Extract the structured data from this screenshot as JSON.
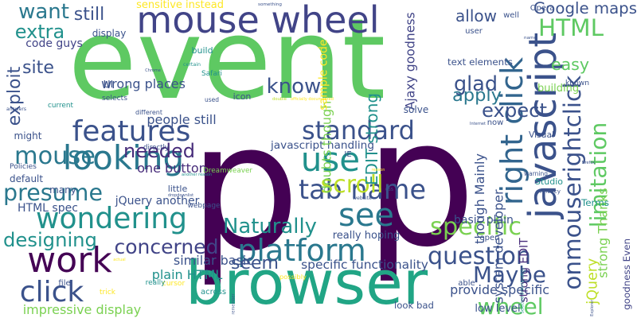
{
  "words": [
    {
      "text": "event",
      "color": "#5ec962",
      "vertical": false
    },
    {
      "text": "p",
      "color": "#440154",
      "vertical": false
    },
    {
      "text": "p",
      "color": "#440154",
      "vertical": false
    },
    {
      "text": "browser",
      "color": "#21a585",
      "vertical": false
    },
    {
      "text": "mouse wheel",
      "color": "#414487",
      "vertical": false
    },
    {
      "text": "javascript",
      "color": "#3b528b",
      "vertical": true
    },
    {
      "text": "right click",
      "color": "#32658e",
      "vertical": true
    },
    {
      "text": "onmouserightclick",
      "color": "#3b528b",
      "vertical": true
    },
    {
      "text": "limitation",
      "color": "#5ec962",
      "vertical": true
    },
    {
      "text": "platform",
      "color": "#2a788e",
      "vertical": false
    },
    {
      "text": "work",
      "color": "#440154",
      "vertical": false
    },
    {
      "text": "features",
      "color": "#3b528b",
      "vertical": false
    },
    {
      "text": "looking",
      "color": "#2a788e",
      "vertical": false
    },
    {
      "text": "wondering",
      "color": "#21918c",
      "vertical": false
    },
    {
      "text": "standard",
      "color": "#3b528b",
      "vertical": false
    },
    {
      "text": "use",
      "color": "#21918c",
      "vertical": false
    },
    {
      "text": "see",
      "color": "#2a788e",
      "vertical": false
    },
    {
      "text": "tab name",
      "color": "#3b528b",
      "vertical": false
    },
    {
      "text": "easy",
      "color": "#5ec962",
      "vertical": false
    },
    {
      "text": "HTML",
      "color": "#5ec962",
      "vertical": false
    },
    {
      "text": "mouse",
      "color": "#2a788e",
      "vertical": false
    },
    {
      "text": "click",
      "color": "#3b528b",
      "vertical": false
    },
    {
      "text": "question",
      "color": "#3b528b",
      "vertical": false
    },
    {
      "text": "Maybe",
      "color": "#3b528b",
      "vertical": false
    },
    {
      "text": "specific",
      "color": "#7ad151",
      "vertical": false
    },
    {
      "text": "wheel",
      "color": "#5ec962",
      "vertical": false
    },
    {
      "text": "want",
      "color": "#2a788e",
      "vertical": false
    },
    {
      "text": "exploit",
      "color": "#3b528b",
      "vertical": true
    },
    {
      "text": "presume",
      "color": "#2a788e",
      "vertical": false
    },
    {
      "text": "scroll",
      "color": "#bddf26",
      "vertical": false
    },
    {
      "text": "know",
      "color": "#3b528b",
      "vertical": false
    },
    {
      "text": "apply",
      "color": "#2a788e",
      "vertical": false
    },
    {
      "text": "glad",
      "color": "#3b528b",
      "vertical": false
    },
    {
      "text": "expect",
      "color": "#3b528b",
      "vertical": false
    },
    {
      "text": "designing",
      "color": "#21918c",
      "vertical": false
    },
    {
      "text": "concerned",
      "color": "#414487",
      "vertical": false
    },
    {
      "text": "Naturally",
      "color": "#21918c",
      "vertical": false
    },
    {
      "text": "seem",
      "color": "#3b528b",
      "vertical": false
    },
    {
      "text": "needed",
      "color": "#472c7a",
      "vertical": false
    },
    {
      "text": "site",
      "color": "#3b528b",
      "vertical": false
    },
    {
      "text": "extra",
      "color": "#21918c",
      "vertical": false
    },
    {
      "text": "still",
      "color": "#3b528b",
      "vertical": false
    },
    {
      "text": "allow",
      "color": "#3b528b",
      "vertical": false
    },
    {
      "text": "Google maps",
      "color": "#3b528b",
      "vertical": false
    },
    {
      "text": "jQuery",
      "color": "#bddf26",
      "vertical": true
    },
    {
      "text": "goodness Even",
      "color": "#414487",
      "vertical": true
    },
    {
      "text": "impressive display",
      "color": "#7ad151",
      "vertical": false
    },
    {
      "text": "specific functionality",
      "color": "#3b528b",
      "vertical": false
    },
    {
      "text": "provide specific",
      "color": "#3b528b",
      "vertical": false
    },
    {
      "text": "similar basic",
      "color": "#3b528b",
      "vertical": false
    },
    {
      "text": "plain HTML",
      "color": "#21918c",
      "vertical": false
    },
    {
      "text": "wrong places",
      "color": "#3b528b",
      "vertical": false
    },
    {
      "text": "javascript handling",
      "color": "#3b528b",
      "vertical": false
    },
    {
      "text": "people still",
      "color": "#3b528b",
      "vertical": false
    },
    {
      "text": "one button",
      "color": "#472c7a",
      "vertical": false
    },
    {
      "text": "code guys",
      "color": "#414487",
      "vertical": false
    },
    {
      "text": "sensitive instead",
      "color": "#fde725",
      "vertical": false
    },
    {
      "text": "Ajaxy goodness",
      "color": "#414487",
      "vertical": true
    },
    {
      "text": "EDIT strong",
      "color": "#21918c",
      "vertical": true
    },
    {
      "text": "doubts though",
      "color": "#7ad151",
      "vertical": true
    },
    {
      "text": "sample code",
      "color": "#fde725",
      "vertical": true
    },
    {
      "text": "though Mainly",
      "color": "#3b528b",
      "vertical": true
    },
    {
      "text": "strong Thanks",
      "color": "#7ad151",
      "vertical": true
    },
    {
      "text": "system developer",
      "color": "#3b528b",
      "vertical": true
    },
    {
      "text": "strong EDIT",
      "color": "#472c7a",
      "vertical": true
    },
    {
      "text": "another reason",
      "color": "#21918c",
      "vertical": false
    },
    {
      "text": "jQuery another",
      "color": "#3b528b",
      "vertical": false
    },
    {
      "text": "HTML spec",
      "color": "#3b528b",
      "vertical": false
    },
    {
      "text": "text elements",
      "color": "#3b528b",
      "vertical": false
    },
    {
      "text": "basic plain",
      "color": "#3b528b",
      "vertical": false
    },
    {
      "text": "low level",
      "color": "#3b528b",
      "vertical": false
    },
    {
      "text": "look bad",
      "color": "#3b528b",
      "vertical": false
    },
    {
      "text": "officially documented",
      "color": "#fde725",
      "vertical": false
    },
    {
      "text": "really hoping",
      "color": "#3b528b",
      "vertical": false
    },
    {
      "text": "building",
      "color": "#7ad151",
      "vertical": false
    },
    {
      "text": "solve",
      "color": "#3b528b",
      "vertical": false
    },
    {
      "text": "default",
      "color": "#3b528b",
      "vertical": false
    },
    {
      "text": "Policies",
      "color": "#3b528b",
      "vertical": false
    },
    {
      "text": "many",
      "color": "#3b528b",
      "vertical": false
    },
    {
      "text": "directly",
      "color": "#3b528b",
      "vertical": false
    },
    {
      "text": "might",
      "color": "#3b528b",
      "vertical": false
    },
    {
      "text": "current",
      "color": "#21918c",
      "vertical": false
    },
    {
      "text": "answers",
      "color": "#3b528b",
      "vertical": false
    },
    {
      "text": "display",
      "color": "#3b528b",
      "vertical": false
    },
    {
      "text": "UI",
      "color": "#3b528b",
      "vertical": false
    },
    {
      "text": "Chrome",
      "color": "#3b528b",
      "vertical": false
    },
    {
      "text": "Safari",
      "color": "#21918c",
      "vertical": false
    },
    {
      "text": "selects",
      "color": "#3b528b",
      "vertical": false
    },
    {
      "text": "build",
      "color": "#21918c",
      "vertical": false
    },
    {
      "text": "certain",
      "color": "#21918c",
      "vertical": false
    },
    {
      "text": "icon",
      "color": "#3b528b",
      "vertical": false
    },
    {
      "text": "used",
      "color": "#3b528b",
      "vertical": false
    },
    {
      "text": "double",
      "color": "#bddf26",
      "vertical": false
    },
    {
      "text": "different",
      "color": "#3b528b",
      "vertical": false
    },
    {
      "text": "something",
      "color": "#3b528b",
      "vertical": false
    },
    {
      "text": "user",
      "color": "#3b528b",
      "vertical": false
    },
    {
      "text": "Internet",
      "color": "#3b528b",
      "vertical": false
    },
    {
      "text": "Visual",
      "color": "#3b528b",
      "vertical": false
    },
    {
      "text": "warning",
      "color": "#3b528b",
      "vertical": false
    },
    {
      "text": "Studio",
      "color": "#21918c",
      "vertical": false
    },
    {
      "text": "Privacy",
      "color": "#3b528b",
      "vertical": false
    },
    {
      "text": "Terms",
      "color": "#21918c",
      "vertical": false
    },
    {
      "text": "CSS",
      "color": "#3b528b",
      "vertical": false
    },
    {
      "text": "website",
      "color": "#3b528b",
      "vertical": false
    },
    {
      "text": "little",
      "color": "#3b528b",
      "vertical": false
    },
    {
      "text": "dropdownlist",
      "color": "#3b528b",
      "vertical": false
    },
    {
      "text": "Dreamweaver",
      "color": "#7ad151",
      "vertical": false
    },
    {
      "text": "webpage",
      "color": "#3b528b",
      "vertical": false
    },
    {
      "text": "file",
      "color": "#3b528b",
      "vertical": false
    },
    {
      "text": "trick",
      "color": "#fde725",
      "vertical": false
    },
    {
      "text": "possibly",
      "color": "#fde725",
      "vertical": false
    },
    {
      "text": "across",
      "color": "#21918c",
      "vertical": false
    },
    {
      "text": "open",
      "color": "#3b528b",
      "vertical": false
    },
    {
      "text": "able",
      "color": "#3b528b",
      "vertical": false
    },
    {
      "text": "Explorer",
      "color": "#3b528b",
      "vertical": true
    },
    {
      "text": "Selected Unfortunately",
      "color": "#21918c",
      "vertical": true
    },
    {
      "text": "Firefox",
      "color": "#3b528b",
      "vertical": false
    },
    {
      "text": "Opera",
      "color": "#3b528b",
      "vertical": false
    },
    {
      "text": "well",
      "color": "#3b528b",
      "vertical": false
    },
    {
      "text": "name",
      "color": "#3b528b",
      "vertical": false
    },
    {
      "text": "IE",
      "color": "#3b528b",
      "vertical": false
    },
    {
      "text": "reason",
      "color": "#fde725",
      "vertical": false
    },
    {
      "text": "cursor",
      "color": "#fde725",
      "vertical": false
    },
    {
      "text": "remember",
      "color": "#3b528b",
      "vertical": true
    },
    {
      "text": "actual",
      "color": "#fde725",
      "vertical": false
    },
    {
      "text": "really",
      "color": "#21918c",
      "vertical": false
    },
    {
      "text": "known",
      "color": "#3b528b",
      "vertical": false
    },
    {
      "text": "now",
      "color": "#3b528b",
      "vertical": false
    }
  ]
}
